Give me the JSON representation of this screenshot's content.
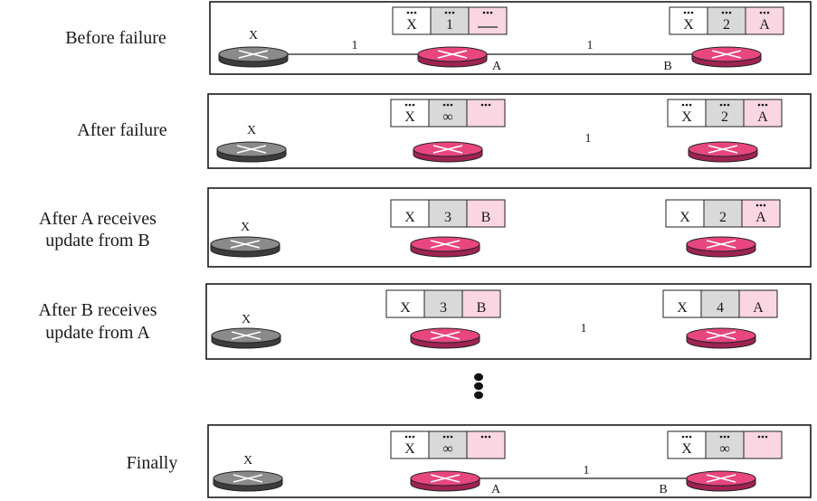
{
  "colors": {
    "router_pink": "#e8467f",
    "router_pink_dark": "#9e2352",
    "router_gray": "#8a8a8a",
    "router_gray_dark": "#3c3c3c",
    "cell_white": "#ffffff",
    "cell_gray": "#d9d9d9",
    "cell_pink": "#f9d6e1",
    "line": "#1a1a1a"
  },
  "panels": [
    {
      "label": [
        "Before failure"
      ],
      "x_label": "X",
      "link_ab_cost": "1",
      "link_xa_cost": "1",
      "node_a_label": "A",
      "node_b_label": "B",
      "table_a": {
        "dest": "X",
        "cost": "1",
        "next": "—",
        "dots": [
          true,
          true,
          true
        ]
      },
      "table_b": {
        "dest": "X",
        "cost": "2",
        "next": "A",
        "dots": [
          true,
          true,
          true
        ]
      }
    },
    {
      "label": [
        "After failure"
      ],
      "x_label": "X",
      "link_ab_cost": "1",
      "table_a": {
        "dest": "X",
        "cost": "∞",
        "next": "",
        "dots": [
          true,
          true,
          true
        ]
      },
      "table_b": {
        "dest": "X",
        "cost": "2",
        "next": "A",
        "dots": [
          true,
          true,
          true
        ]
      }
    },
    {
      "label": [
        "After A receives",
        "update from B"
      ],
      "x_label": "X",
      "table_a": {
        "dest": "X",
        "cost": "3",
        "next": "B",
        "dots": [
          false,
          false,
          false
        ]
      },
      "table_b": {
        "dest": "X",
        "cost": "2",
        "next": "A",
        "dots": [
          false,
          false,
          true
        ]
      }
    },
    {
      "label": [
        "After B receives",
        "update from A"
      ],
      "x_label": "X",
      "link_ab_cost": "1",
      "table_a": {
        "dest": "X",
        "cost": "3",
        "next": "B",
        "dots": [
          false,
          false,
          false
        ]
      },
      "table_b": {
        "dest": "X",
        "cost": "4",
        "next": "A",
        "dots": [
          false,
          false,
          false
        ]
      }
    },
    {
      "label": [
        "Finally"
      ],
      "x_label": "X",
      "link_ab_cost": "1",
      "node_a_label": "A",
      "node_b_label": "B",
      "table_a": {
        "dest": "X",
        "cost": "∞",
        "next": "",
        "dots": [
          true,
          true,
          true
        ]
      },
      "table_b": {
        "dest": "X",
        "cost": "∞",
        "next": "",
        "dots": [
          true,
          true,
          true
        ]
      }
    }
  ]
}
